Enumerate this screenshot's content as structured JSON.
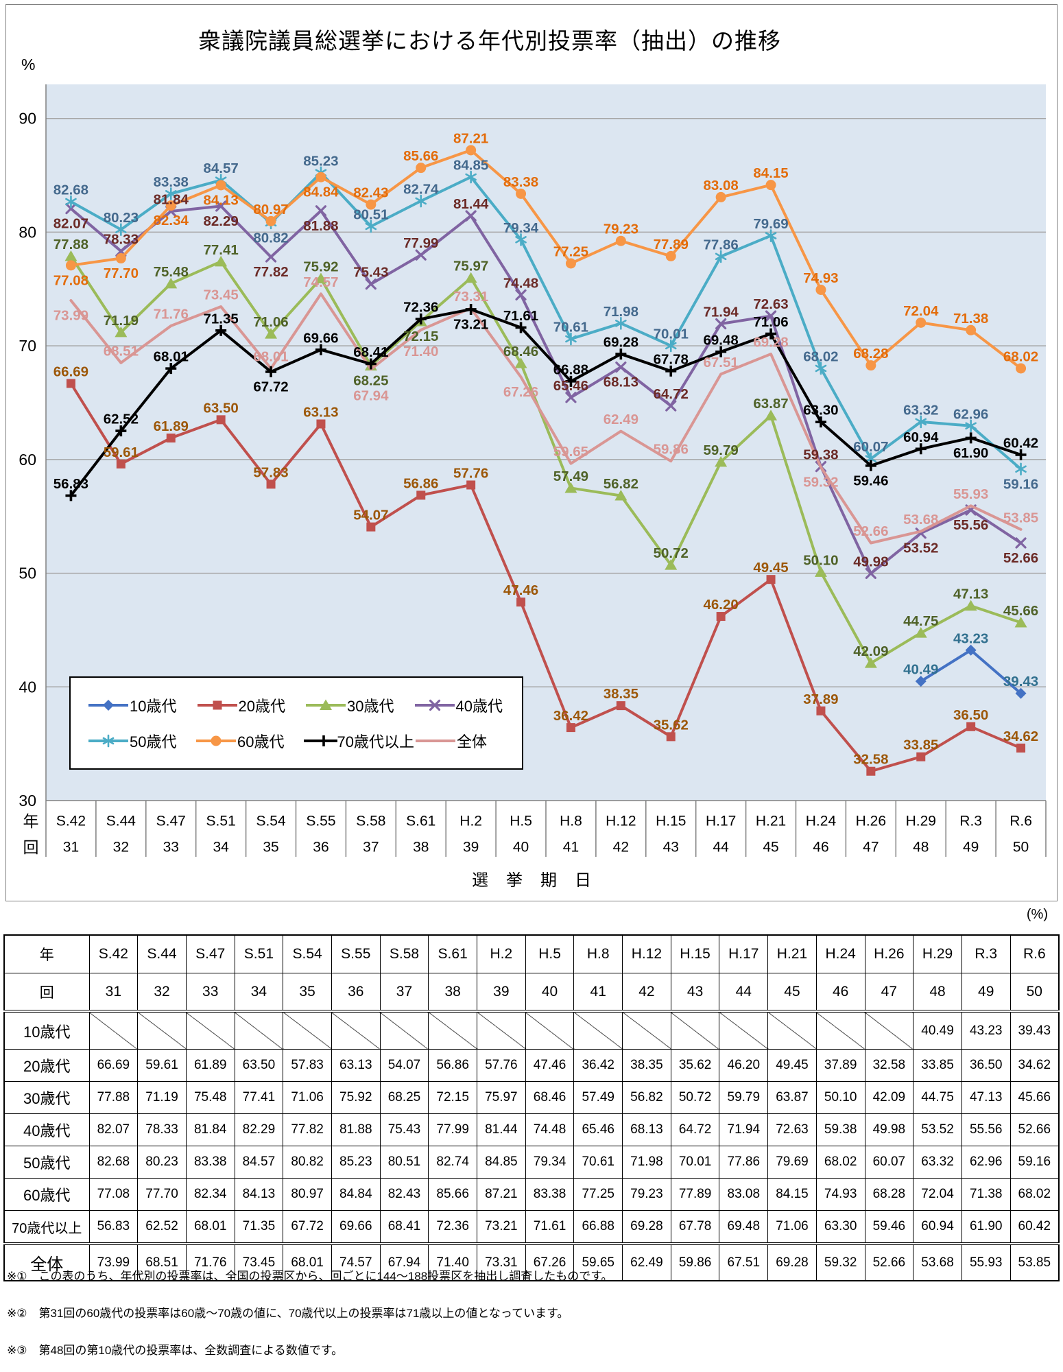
{
  "chart_data": {
    "type": "line",
    "title": "衆議院議員総選挙における年代別投票率（抽出）の推移",
    "y_unit_label": "%",
    "xlabel": "選挙期日",
    "axis_year_label": "年",
    "axis_round_label": "回",
    "ylim": [
      30,
      93
    ],
    "yticks": [
      30,
      40,
      50,
      60,
      70,
      80,
      90
    ],
    "grid": "horizontal",
    "legend_position": "inside-bottom-left",
    "plot_bg_color": "#DCE6F1",
    "gridline_color": "#A6A6A6",
    "axis_color": "#808080",
    "categories_year": [
      "S.42",
      "S.44",
      "S.47",
      "S.51",
      "S.54",
      "S.55",
      "S.58",
      "S.61",
      "H.2",
      "H.5",
      "H.8",
      "H.12",
      "H.15",
      "H.17",
      "H.21",
      "H.24",
      "H.26",
      "H.29",
      "R.3",
      "R.6"
    ],
    "categories_round": [
      "31",
      "32",
      "33",
      "34",
      "35",
      "36",
      "37",
      "38",
      "39",
      "40",
      "41",
      "42",
      "43",
      "44",
      "45",
      "46",
      "47",
      "48",
      "49",
      "50"
    ],
    "series": [
      {
        "name": "10歳代",
        "color": "#4472C4",
        "label_color": "#31708F",
        "marker": "diamond",
        "values": [
          null,
          null,
          null,
          null,
          null,
          null,
          null,
          null,
          null,
          null,
          null,
          null,
          null,
          null,
          null,
          null,
          null,
          40.49,
          43.23,
          39.43
        ]
      },
      {
        "name": "20歳代",
        "color": "#C0504D",
        "label_color": "#9C5708",
        "marker": "square",
        "values": [
          66.69,
          59.61,
          61.89,
          63.5,
          57.83,
          63.13,
          54.07,
          56.86,
          57.76,
          47.46,
          36.42,
          38.35,
          35.62,
          46.2,
          49.45,
          37.89,
          32.58,
          33.85,
          36.5,
          34.62
        ]
      },
      {
        "name": "30歳代",
        "color": "#9BBB59",
        "label_color": "#4F6228",
        "marker": "triangle",
        "values": [
          77.88,
          71.19,
          75.48,
          77.41,
          71.06,
          75.92,
          68.25,
          72.15,
          75.97,
          68.46,
          57.49,
          56.82,
          50.72,
          59.79,
          63.87,
          50.1,
          42.09,
          44.75,
          47.13,
          45.66
        ]
      },
      {
        "name": "40歳代",
        "color": "#8064A2",
        "label_color": "#6B2A26",
        "marker": "x",
        "values": [
          82.07,
          78.33,
          81.84,
          82.29,
          77.82,
          81.88,
          75.43,
          77.99,
          81.44,
          74.48,
          65.46,
          68.13,
          64.72,
          71.94,
          72.63,
          59.38,
          49.98,
          53.52,
          55.56,
          52.66
        ]
      },
      {
        "name": "50歳代",
        "color": "#4BACC6",
        "label_color": "#44698D",
        "marker": "asterisk",
        "values": [
          82.68,
          80.23,
          83.38,
          84.57,
          80.82,
          85.23,
          80.51,
          82.74,
          84.85,
          79.34,
          70.61,
          71.98,
          70.01,
          77.86,
          79.69,
          68.02,
          60.07,
          63.32,
          62.96,
          59.16
        ]
      },
      {
        "name": "60歳代",
        "color": "#F79646",
        "label_color": "#E36C0A",
        "marker": "circle",
        "values": [
          77.08,
          77.7,
          82.34,
          84.13,
          80.97,
          84.84,
          82.43,
          85.66,
          87.21,
          83.38,
          77.25,
          79.23,
          77.89,
          83.08,
          84.15,
          74.93,
          68.28,
          72.04,
          71.38,
          68.02
        ]
      },
      {
        "name": "70歳代以上",
        "color": "#000000",
        "label_color": "#000000",
        "marker": "plus",
        "values": [
          56.83,
          62.52,
          68.01,
          71.35,
          67.72,
          69.66,
          68.41,
          72.36,
          73.21,
          71.61,
          66.88,
          69.28,
          67.78,
          69.48,
          71.06,
          63.3,
          59.46,
          60.94,
          61.9,
          60.42
        ]
      },
      {
        "name": "全体",
        "color": "#D99694",
        "label_color": "#D99694",
        "marker": "none",
        "values": [
          73.99,
          68.51,
          71.76,
          73.45,
          68.01,
          74.57,
          67.94,
          71.4,
          73.31,
          67.26,
          59.65,
          62.49,
          59.86,
          67.51,
          69.28,
          59.32,
          52.66,
          53.68,
          55.93,
          53.85
        ]
      }
    ]
  },
  "table": {
    "unit_note": "(%)",
    "year_label": "年",
    "round_label": "回"
  },
  "footnotes": [
    "※①　この表のうち、年代別の投票率は、全国の投票区から、回ごとに144～188投票区を抽出し調査したものです。",
    "※②　第31回の60歳代の投票率は60歳～70歳の値に、70歳代以上の投票率は71歳以上の値となっています。",
    "※③　第48回の第10歳代の投票率は、全数調査による数値です。"
  ]
}
